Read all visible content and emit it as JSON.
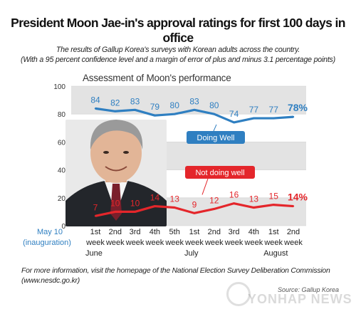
{
  "header": {
    "title": "President Moon Jae-in's approval ratings for first 100 days in office",
    "subtitle_line1": "The results of Gallup Korea's surveys with Korean adults across the country.",
    "subtitle_line2": "(With a 95 percent confidence level and a margin of error of plus and minus 3.1 percentage points)"
  },
  "chart_data": {
    "type": "line",
    "title": "Assessment of Moon's performance",
    "ylim": [
      0,
      100
    ],
    "y_ticks": [
      "0",
      "20",
      "40",
      "60",
      "80",
      "100"
    ],
    "first_label": {
      "line1": "May 10",
      "line2": "(inauguration)"
    },
    "categories": [
      {
        "num": "1st",
        "week": "week"
      },
      {
        "num": "2nd",
        "week": "week"
      },
      {
        "num": "3rd",
        "week": "week"
      },
      {
        "num": "4th",
        "week": "week"
      },
      {
        "num": "5th",
        "week": "week"
      },
      {
        "num": "1st",
        "week": "week"
      },
      {
        "num": "2nd",
        "week": "week"
      },
      {
        "num": "3rd",
        "week": "week"
      },
      {
        "num": "4th",
        "week": "week"
      },
      {
        "num": "1st",
        "week": "week"
      },
      {
        "num": "2nd",
        "week": "week"
      }
    ],
    "months": [
      {
        "label": "June",
        "index": 0
      },
      {
        "label": "July",
        "index": 5
      },
      {
        "label": "August",
        "index": 9
      }
    ],
    "series": [
      {
        "name": "Doing Well",
        "color": "#2f7fc1",
        "values": [
          84,
          82,
          83,
          79,
          80,
          83,
          80,
          74,
          77,
          77,
          78
        ],
        "value_labels": [
          "84",
          "82",
          "83",
          "79",
          "80",
          "83",
          "80",
          "74",
          "77",
          "77",
          "78%"
        ]
      },
      {
        "name": "Not doing well",
        "color": "#e4262b",
        "values": [
          7,
          10,
          10,
          14,
          13,
          9,
          12,
          16,
          13,
          15,
          14
        ],
        "value_labels": [
          "7",
          "10",
          "10",
          "14",
          "13",
          "9",
          "12",
          "16",
          "13",
          "15",
          "14%"
        ]
      }
    ],
    "band_color": "#e3e3e3"
  },
  "footer": {
    "line1": "For more information, visit the homepage of the National Election Survey Deliberation Commission",
    "line2": "(www.nesdc.go.kr)",
    "source": "Source: Gallup Korea",
    "watermark": "YONHAP NEWS"
  }
}
